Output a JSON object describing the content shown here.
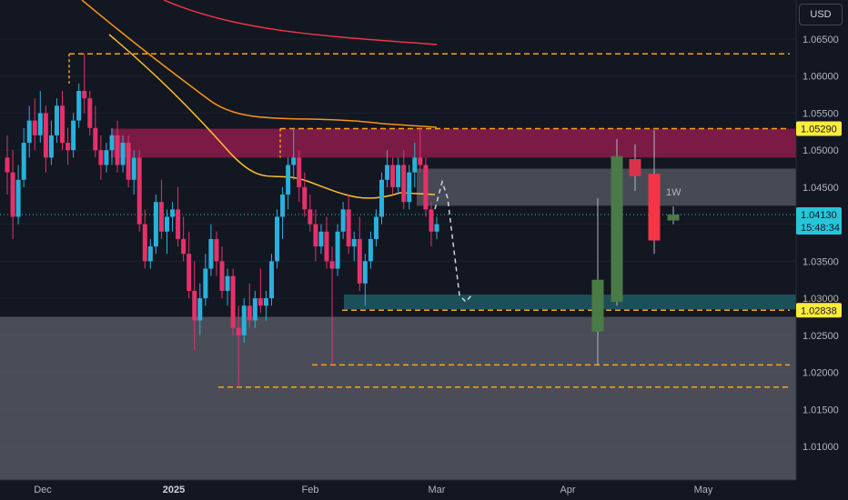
{
  "currency": "USD",
  "chart_data": {
    "type": "candlestick",
    "price_scale": [
      "1.06500",
      "1.06000",
      "1.05500",
      "1.05000",
      "1.04500",
      "1.04000",
      "1.03500",
      "1.03000",
      "1.02500",
      "1.02000",
      "1.01500",
      "1.01000"
    ],
    "price_ticks": [
      1.065,
      1.06,
      1.055,
      1.05,
      1.045,
      1.04,
      1.035,
      1.03,
      1.025,
      1.02,
      1.015,
      1.01
    ],
    "time_labels": [
      {
        "label": "Dec",
        "bold": false
      },
      {
        "label": "2025",
        "bold": true
      },
      {
        "label": "Feb",
        "bold": false
      },
      {
        "label": "Mar",
        "bold": false
      },
      {
        "label": "Apr",
        "bold": false
      },
      {
        "label": "May",
        "bold": false
      }
    ],
    "price_tags": [
      {
        "value": "1.05290",
        "color": "#ffeb3b",
        "text_color": "#131722"
      },
      {
        "value": "1.04130",
        "color": "#26c6da",
        "text_color": "#131722",
        "countdown": "15:48:34"
      },
      {
        "value": "1.02838",
        "color": "#ffeb3b",
        "text_color": "#131722"
      }
    ],
    "current_price": 1.0413,
    "annotation": "1W",
    "horizontal_levels": [
      1.063,
      1.0529,
      1.02838,
      1.021,
      1.018
    ],
    "zones": [
      {
        "from": 1.0529,
        "to": 1.049,
        "color": "#8e1c4b"
      },
      {
        "from": 1.0475,
        "to": 1.0425,
        "color": "#50535e"
      },
      {
        "from": 1.0305,
        "to": 1.0285,
        "color": "#1e5a63"
      },
      {
        "from": 1.0275,
        "to": 1.0,
        "color": "#5d606b"
      }
    ],
    "candles_daily": [
      [
        1.049,
        1.052,
        1.044,
        1.047
      ],
      [
        1.047,
        1.05,
        1.038,
        1.041
      ],
      [
        1.041,
        1.048,
        1.04,
        1.046
      ],
      [
        1.046,
        1.053,
        1.045,
        1.051
      ],
      [
        1.051,
        1.056,
        1.049,
        1.054
      ],
      [
        1.054,
        1.057,
        1.05,
        1.052
      ],
      [
        1.052,
        1.058,
        1.051,
        1.055
      ],
      [
        1.055,
        1.056,
        1.047,
        1.049
      ],
      [
        1.049,
        1.054,
        1.048,
        1.052
      ],
      [
        1.052,
        1.057,
        1.051,
        1.056
      ],
      [
        1.056,
        1.058,
        1.05,
        1.051
      ],
      [
        1.051,
        1.053,
        1.048,
        1.05
      ],
      [
        1.05,
        1.055,
        1.049,
        1.054
      ],
      [
        1.054,
        1.059,
        1.053,
        1.058
      ],
      [
        1.058,
        1.063,
        1.055,
        1.057
      ],
      [
        1.057,
        1.058,
        1.052,
        1.053
      ],
      [
        1.053,
        1.056,
        1.049,
        1.05
      ],
      [
        1.05,
        1.052,
        1.046,
        1.048
      ],
      [
        1.048,
        1.051,
        1.047,
        1.05
      ],
      [
        1.05,
        1.053,
        1.048,
        1.052
      ],
      [
        1.052,
        1.054,
        1.047,
        1.048
      ],
      [
        1.048,
        1.052,
        1.047,
        1.051
      ],
      [
        1.051,
        1.052,
        1.045,
        1.046
      ],
      [
        1.046,
        1.05,
        1.044,
        1.049
      ],
      [
        1.049,
        1.05,
        1.039,
        1.04
      ],
      [
        1.04,
        1.042,
        1.034,
        1.035
      ],
      [
        1.035,
        1.038,
        1.034,
        1.037
      ],
      [
        1.037,
        1.044,
        1.036,
        1.043
      ],
      [
        1.043,
        1.046,
        1.038,
        1.039
      ],
      [
        1.039,
        1.042,
        1.036,
        1.041
      ],
      [
        1.041,
        1.043,
        1.039,
        1.042
      ],
      [
        1.042,
        1.045,
        1.037,
        1.038
      ],
      [
        1.038,
        1.041,
        1.035,
        1.036
      ],
      [
        1.036,
        1.039,
        1.03,
        1.031
      ],
      [
        1.031,
        1.035,
        1.023,
        1.027
      ],
      [
        1.027,
        1.032,
        1.025,
        1.03
      ],
      [
        1.03,
        1.036,
        1.029,
        1.034
      ],
      [
        1.034,
        1.04,
        1.033,
        1.038
      ],
      [
        1.038,
        1.039,
        1.033,
        1.035
      ],
      [
        1.035,
        1.037,
        1.03,
        1.031
      ],
      [
        1.031,
        1.034,
        1.029,
        1.033
      ],
      [
        1.033,
        1.034,
        1.025,
        1.026
      ],
      [
        1.026,
        1.029,
        1.018,
        1.025
      ],
      [
        1.025,
        1.03,
        1.024,
        1.029
      ],
      [
        1.029,
        1.032,
        1.026,
        1.027
      ],
      [
        1.027,
        1.031,
        1.026,
        1.03
      ],
      [
        1.03,
        1.034,
        1.028,
        1.029
      ],
      [
        1.029,
        1.031,
        1.027,
        1.03
      ],
      [
        1.03,
        1.036,
        1.029,
        1.035
      ],
      [
        1.035,
        1.042,
        1.034,
        1.041
      ],
      [
        1.041,
        1.045,
        1.038,
        1.044
      ],
      [
        1.044,
        1.049,
        1.042,
        1.048
      ],
      [
        1.048,
        1.053,
        1.046,
        1.049
      ],
      [
        1.049,
        1.05,
        1.043,
        1.045
      ],
      [
        1.045,
        1.047,
        1.041,
        1.042
      ],
      [
        1.042,
        1.044,
        1.039,
        1.04
      ],
      [
        1.04,
        1.042,
        1.035,
        1.037
      ],
      [
        1.037,
        1.04,
        1.036,
        1.039
      ],
      [
        1.039,
        1.041,
        1.034,
        1.035
      ],
      [
        1.035,
        1.037,
        1.021,
        1.034
      ],
      [
        1.034,
        1.04,
        1.033,
        1.039
      ],
      [
        1.039,
        1.043,
        1.038,
        1.042
      ],
      [
        1.042,
        1.044,
        1.036,
        1.037
      ],
      [
        1.037,
        1.039,
        1.035,
        1.038
      ],
      [
        1.038,
        1.041,
        1.031,
        1.032
      ],
      [
        1.032,
        1.036,
        1.029,
        1.035
      ],
      [
        1.035,
        1.039,
        1.034,
        1.038
      ],
      [
        1.038,
        1.042,
        1.037,
        1.041
      ],
      [
        1.041,
        1.047,
        1.04,
        1.046
      ],
      [
        1.046,
        1.05,
        1.045,
        1.048
      ],
      [
        1.048,
        1.049,
        1.044,
        1.045
      ],
      [
        1.045,
        1.049,
        1.044,
        1.048
      ],
      [
        1.048,
        1.05,
        1.042,
        1.043
      ],
      [
        1.043,
        1.048,
        1.042,
        1.047
      ],
      [
        1.047,
        1.051,
        1.045,
        1.049
      ],
      [
        1.049,
        1.053,
        1.047,
        1.048
      ],
      [
        1.048,
        1.049,
        1.041,
        1.042
      ],
      [
        1.042,
        1.043,
        1.037,
        1.039
      ],
      [
        1.039,
        1.041,
        1.038,
        1.04
      ]
    ],
    "candles_weekly": [
      [
        1.0255,
        1.0435,
        1.021,
        1.0325,
        "#4a7a46"
      ],
      [
        1.0295,
        1.0515,
        1.029,
        1.0492,
        "#4a7a46"
      ],
      [
        1.0488,
        1.0508,
        1.0445,
        1.0465,
        "#d9334a"
      ],
      [
        1.0468,
        1.0527,
        1.036,
        1.0378,
        "#f23645"
      ],
      [
        1.0405,
        1.0424,
        1.04,
        1.0413,
        "#4a7a46"
      ]
    ]
  }
}
